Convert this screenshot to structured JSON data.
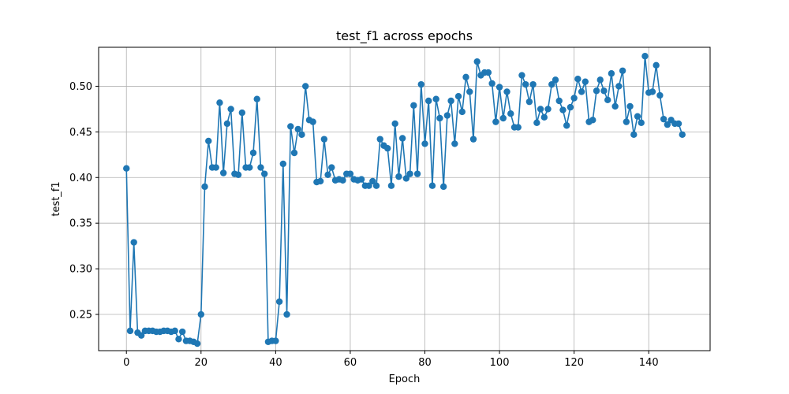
{
  "chart_data": {
    "type": "line",
    "title": "test_f1 across epochs",
    "xlabel": "Epoch",
    "ylabel": "test_f1",
    "xlim": [
      -7.45,
      156.45
    ],
    "ylim": [
      0.2103,
      0.5427
    ],
    "xticks": [
      0,
      20,
      40,
      60,
      80,
      100,
      120,
      140
    ],
    "yticks": [
      0.25,
      0.3,
      0.35,
      0.4,
      0.45,
      0.5
    ],
    "ytick_labels": [
      "0.25",
      "0.30",
      "0.35",
      "0.40",
      "0.45",
      "0.50"
    ],
    "grid": true,
    "marker": "circle",
    "color": "#1f77b4",
    "series": [
      {
        "x": [
          0,
          1,
          2,
          3,
          4,
          5,
          6,
          7,
          8,
          9,
          10,
          11,
          12,
          13,
          14,
          15,
          16,
          17,
          18,
          19,
          20,
          21,
          22,
          23,
          24,
          25,
          26,
          27,
          28,
          29,
          30,
          31,
          32,
          33,
          34,
          35,
          36,
          37,
          38,
          39,
          40,
          41,
          42,
          43,
          44,
          45,
          46,
          47,
          48,
          49,
          50,
          51,
          52,
          53,
          54,
          55,
          56,
          57,
          58,
          59,
          60,
          61,
          62,
          63,
          64,
          65,
          66,
          67,
          68,
          69,
          70,
          71,
          72,
          73,
          74,
          75,
          76,
          77,
          78,
          79,
          80,
          81,
          82,
          83,
          84,
          85,
          86,
          87,
          88,
          89,
          90,
          91,
          92,
          93,
          94,
          95,
          96,
          97,
          98,
          99,
          100,
          101,
          102,
          103,
          104,
          105,
          106,
          107,
          108,
          109,
          110,
          111,
          112,
          113,
          114,
          115,
          116,
          117,
          118,
          119,
          120,
          121,
          122,
          123,
          124,
          125,
          126,
          127,
          128,
          129,
          130,
          131,
          132,
          133,
          134,
          135,
          136,
          137,
          138,
          139,
          140,
          141,
          142,
          143,
          144,
          145,
          146,
          147,
          148,
          149
        ],
        "values": [
          0.41,
          0.232,
          0.329,
          0.23,
          0.227,
          0.232,
          0.232,
          0.232,
          0.231,
          0.231,
          0.232,
          0.232,
          0.231,
          0.232,
          0.223,
          0.231,
          0.221,
          0.221,
          0.22,
          0.218,
          0.25,
          0.39,
          0.44,
          0.411,
          0.411,
          0.482,
          0.405,
          0.459,
          0.475,
          0.404,
          0.403,
          0.471,
          0.411,
          0.411,
          0.427,
          0.486,
          0.411,
          0.404,
          0.22,
          0.221,
          0.221,
          0.264,
          0.415,
          0.25,
          0.456,
          0.427,
          0.453,
          0.447,
          0.5,
          0.463,
          0.461,
          0.395,
          0.396,
          0.442,
          0.403,
          0.411,
          0.397,
          0.398,
          0.397,
          0.404,
          0.404,
          0.398,
          0.397,
          0.398,
          0.391,
          0.391,
          0.396,
          0.391,
          0.442,
          0.435,
          0.432,
          0.391,
          0.459,
          0.401,
          0.443,
          0.399,
          0.404,
          0.479,
          0.404,
          0.502,
          0.437,
          0.484,
          0.391,
          0.486,
          0.465,
          0.39,
          0.468,
          0.484,
          0.437,
          0.489,
          0.472,
          0.51,
          0.494,
          0.442,
          0.527,
          0.512,
          0.515,
          0.515,
          0.503,
          0.461,
          0.499,
          0.465,
          0.494,
          0.47,
          0.455,
          0.455,
          0.512,
          0.502,
          0.483,
          0.502,
          0.46,
          0.475,
          0.466,
          0.475,
          0.502,
          0.507,
          0.484,
          0.474,
          0.457,
          0.477,
          0.487,
          0.508,
          0.494,
          0.505,
          0.461,
          0.463,
          0.495,
          0.507,
          0.495,
          0.485,
          0.514,
          0.478,
          0.5,
          0.517,
          0.461,
          0.478,
          0.447,
          0.467,
          0.46,
          0.533,
          0.493,
          0.494,
          0.523,
          0.49,
          0.464,
          0.458,
          0.463,
          0.459,
          0.459,
          0.447
        ]
      }
    ]
  }
}
